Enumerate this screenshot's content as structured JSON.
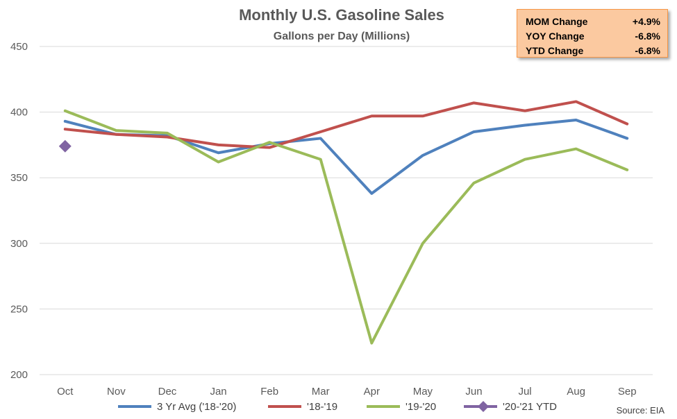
{
  "kpi": [
    {
      "label": "MOM Change",
      "value": "+4.9%"
    },
    {
      "label": "YOY Change",
      "value": "-6.8%"
    },
    {
      "label": "YTD Change",
      "value": "-6.8%"
    }
  ],
  "source": "Source: EIA",
  "chart_data": {
    "type": "line",
    "title": "Monthly U.S. Gasoline Sales",
    "subtitle": "Gallons per Day (Millions)",
    "xlabel": "",
    "ylabel": "",
    "categories": [
      "Oct",
      "Nov",
      "Dec",
      "Jan",
      "Feb",
      "Mar",
      "Apr",
      "May",
      "Jun",
      "Jul",
      "Aug",
      "Sep"
    ],
    "ylim": [
      200,
      450
    ],
    "yticks": [
      200,
      250,
      300,
      350,
      400,
      450
    ],
    "grid": true,
    "legend_position": "bottom",
    "series": [
      {
        "name": "3 Yr Avg ('18-'20)",
        "color": "#4f81bd",
        "marker": "none",
        "values": [
          393,
          383,
          382,
          369,
          376,
          380,
          338,
          367,
          385,
          390,
          394,
          380
        ]
      },
      {
        "name": "'18-'19",
        "color": "#c0504d",
        "marker": "none",
        "values": [
          387,
          383,
          381,
          375,
          373,
          385,
          397,
          397,
          407,
          401,
          408,
          391
        ]
      },
      {
        "name": "'19-'20",
        "color": "#9bbb59",
        "marker": "none",
        "values": [
          401,
          386,
          384,
          362,
          377,
          364,
          224,
          300,
          346,
          364,
          372,
          356
        ]
      },
      {
        "name": "'20-'21 YTD",
        "color": "#8064a2",
        "marker": "diamond",
        "values": [
          374,
          null,
          null,
          null,
          null,
          null,
          null,
          null,
          null,
          null,
          null,
          null
        ]
      }
    ]
  }
}
